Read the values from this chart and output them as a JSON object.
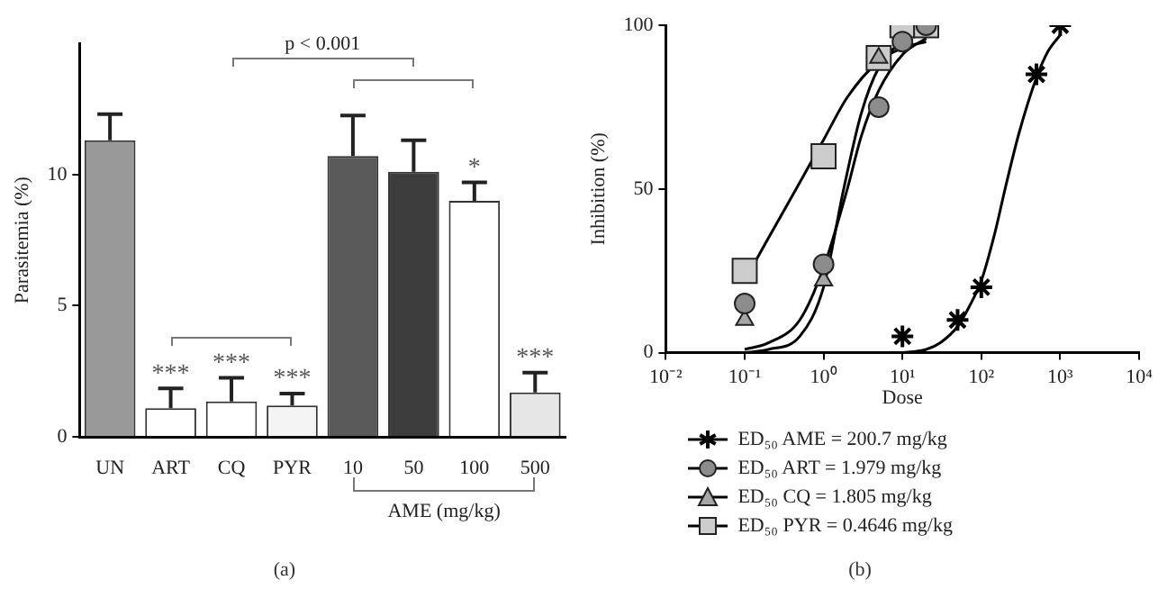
{
  "chart_data": [
    {
      "type": "bar",
      "title": "(a)",
      "xlabel": "AME (mg/kg)",
      "ylabel": "Parasitemia (%)",
      "categories": [
        "UN",
        "ART",
        "CQ",
        "PYR",
        "10",
        "50",
        "100",
        "500"
      ],
      "values": [
        11.3,
        1.1,
        1.35,
        1.2,
        10.7,
        10.1,
        9.0,
        1.7
      ],
      "colors": [
        "#999999",
        "#ffffff",
        "#ffffff",
        "#f4f4f4",
        "#5a5a5a",
        "#3c3c3c",
        "#ffffff",
        "#e6e6e6"
      ],
      "errors": [
        [
          11.3,
          12.3
        ],
        [
          1.1,
          1.85
        ],
        [
          1.35,
          2.25
        ],
        [
          1.2,
          1.65
        ],
        [
          10.7,
          12.25
        ],
        [
          10.1,
          11.3
        ],
        [
          9.0,
          9.7
        ],
        [
          1.7,
          2.45
        ]
      ],
      "ylim": [
        0,
        15
      ],
      "yticks": [
        0,
        5,
        10
      ],
      "annotations": [
        {
          "text": "***",
          "x": "ART",
          "y": 1.85
        },
        {
          "text": "***",
          "x": "CQ",
          "y": 2.25
        },
        {
          "text": "***",
          "x": "PYR",
          "y": 1.65
        },
        {
          "text": "*",
          "x": "100",
          "y": 9.7
        },
        {
          "text": "***",
          "x": "500",
          "y": 2.45
        },
        "p < 0.001"
      ]
    },
    {
      "type": "scatter",
      "title": "(b)",
      "xlabel": "Dose",
      "ylabel": "Inhibition (%)",
      "log": "x",
      "legend": "bottom",
      "xlim": [
        0.01,
        10000
      ],
      "xticks": [
        {
          "value": 0.01,
          "label": "10⁻²"
        },
        {
          "value": 0.1,
          "label": "10⁻¹"
        },
        {
          "value": 1,
          "label": "10⁰"
        },
        {
          "value": 10,
          "label": "10¹"
        },
        {
          "value": 100,
          "label": "10²"
        },
        {
          "value": 1000,
          "label": "10³"
        },
        {
          "value": 10000,
          "label": "10⁴"
        }
      ],
      "ylim": [
        0,
        100
      ],
      "yticks": [
        0,
        50,
        100
      ],
      "series": [
        {
          "name": "ED₅₀ AME = 200.7 mg/kg",
          "color": "#000000",
          "marker": "cross",
          "x": [
            10,
            50,
            100,
            500,
            1000
          ],
          "values": [
            5,
            10,
            20,
            85,
            100
          ]
        },
        {
          "name": "ED₅₀ ART = 1.979 mg/kg",
          "color": "#8c8c8c",
          "marker": "circle",
          "x": [
            0.1,
            1,
            5,
            10,
            20
          ],
          "values": [
            15,
            27,
            75,
            95,
            100
          ]
        },
        {
          "name": "ED₅₀ CQ = 1.805 mg/kg",
          "color": "#a6a6a6",
          "marker": "triangle",
          "x": [
            0.1,
            1,
            5
          ],
          "values": [
            10,
            22,
            90
          ]
        },
        {
          "name": "ED₅₀ PYR = 0.4646 mg/kg",
          "color": "#cccccc",
          "marker": "square",
          "x": [
            0.1,
            1,
            5,
            10,
            20
          ],
          "values": [
            25,
            60,
            90,
            100,
            100
          ]
        },
        {
          "type": "line",
          "color": "#000000",
          "marker": "none",
          "x": [
            10,
            20,
            30,
            50,
            70,
            100,
            150,
            200,
            300,
            500,
            700,
            1000
          ],
          "values": [
            0,
            1,
            3,
            8,
            14,
            22,
            37,
            50,
            67,
            84,
            92,
            97
          ]
        },
        {
          "type": "line",
          "color": "#000000",
          "marker": "none",
          "x": [
            0.1,
            0.2,
            0.5,
            1,
            2,
            3,
            5,
            10,
            20
          ],
          "values": [
            1,
            3,
            10,
            26,
            50,
            66,
            80,
            91,
            96
          ]
        },
        {
          "type": "line",
          "color": "#000000",
          "marker": "none",
          "x": [
            0.1,
            0.2,
            0.5,
            1,
            1.8,
            3,
            5,
            10,
            20
          ],
          "values": [
            0,
            1,
            5,
            20,
            50,
            73,
            87,
            95,
            98
          ]
        },
        {
          "type": "line",
          "color": "#000000",
          "marker": "none",
          "x": [
            0.1,
            0.2,
            0.5,
            1,
            2,
            5,
            10,
            20
          ],
          "values": [
            22,
            35,
            52,
            65,
            78,
            89,
            93,
            95
          ]
        }
      ]
    }
  ]
}
